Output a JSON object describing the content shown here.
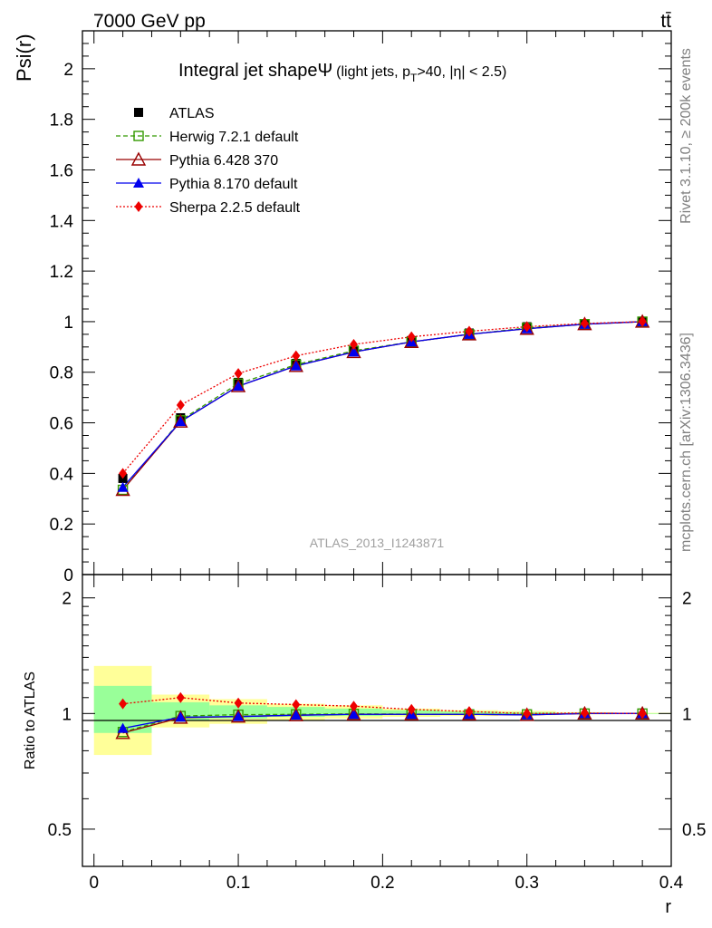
{
  "header": {
    "energy": "7000 GeV pp",
    "process": "tt̄",
    "side_rivet": "Rivet 3.1.10, ≥ 200k events",
    "side_mcplots": "mcplots.cern.ch [arXiv:1306.3436]",
    "watermark": "ATLAS_2013_I1243871"
  },
  "chart_data": [
    {
      "type": "line",
      "id": "main",
      "title": "Integral jet shape",
      "title_symbol": "Ψ",
      "title_sub": "(light jets, p",
      "title_sub_T": "T",
      "title_sub_rest": ">40, |η| < 2.5)",
      "ylabel": "Psi(r)",
      "xlim": [
        -0.008,
        0.4
      ],
      "ylim": [
        0,
        2.15
      ],
      "yticks": [
        0,
        0.2,
        0.4,
        0.6,
        0.8,
        1,
        1.2,
        1.4,
        1.6,
        1.8,
        2
      ],
      "ytick_labels": [
        "0",
        "0.2",
        "0.4",
        "0.6",
        "0.8",
        "1",
        "1.2",
        "1.4",
        "1.6",
        "1.8",
        "2"
      ],
      "x": [
        0.02,
        0.06,
        0.1,
        0.14,
        0.18,
        0.22,
        0.26,
        0.3,
        0.34,
        0.38
      ],
      "series": [
        {
          "name": "ATLAS",
          "color": "#000000",
          "marker": "square",
          "line": "none",
          "values": [
            0.38,
            0.62,
            0.76,
            0.835,
            0.885,
            0.925,
            0.955,
            0.98,
            0.99,
            1.0
          ]
        },
        {
          "name": "Herwig 7.2.1 default",
          "color": "#339900",
          "marker": "open-square",
          "line": "dashed",
          "values": [
            0.335,
            0.61,
            0.755,
            0.83,
            0.885,
            0.92,
            0.95,
            0.975,
            0.99,
            1.0
          ]
        },
        {
          "name": "Pythia 6.428 370",
          "color": "#990000",
          "marker": "open-triangle",
          "line": "solid",
          "values": [
            0.335,
            0.605,
            0.745,
            0.825,
            0.88,
            0.92,
            0.95,
            0.972,
            0.99,
            1.0
          ]
        },
        {
          "name": "Pythia 8.170 default",
          "color": "#0000ee",
          "marker": "triangle",
          "line": "solid",
          "values": [
            0.345,
            0.605,
            0.745,
            0.825,
            0.88,
            0.92,
            0.95,
            0.972,
            0.99,
            1.0
          ]
        },
        {
          "name": "Sherpa 2.2.5 default",
          "color": "#ee0000",
          "marker": "diamond",
          "line": "dotted",
          "values": [
            0.4,
            0.67,
            0.795,
            0.865,
            0.91,
            0.94,
            0.962,
            0.98,
            0.993,
            1.0
          ]
        }
      ]
    },
    {
      "type": "line",
      "id": "ratio",
      "ylabel": "Ratio to ATLAS",
      "xlabel": "r",
      "xlim": [
        -0.008,
        0.4
      ],
      "ylim": [
        0.4,
        2.3
      ],
      "log_y": true,
      "yticks": [
        0.5,
        1,
        2
      ],
      "ytick_labels": [
        "0.5",
        "1",
        "2"
      ],
      "xticks": [
        0,
        0.1,
        0.2,
        0.3,
        0.4
      ],
      "xtick_labels": [
        "0",
        "0.1",
        "0.2",
        "0.3",
        "0.4"
      ],
      "bands": {
        "edges": [
          0.0,
          0.04,
          0.08,
          0.12,
          0.16,
          0.2,
          0.24,
          0.28,
          0.32,
          0.36,
          0.4
        ],
        "yellow": [
          [
            0.78,
            1.33
          ],
          [
            0.92,
            1.12
          ],
          [
            0.94,
            1.09
          ],
          [
            0.96,
            1.06
          ],
          [
            0.97,
            1.05
          ],
          [
            0.98,
            1.03
          ],
          [
            0.985,
            1.02
          ],
          [
            0.99,
            1.015
          ],
          [
            0.995,
            1.008
          ],
          [
            0.997,
            1.004
          ]
        ],
        "green": [
          [
            0.89,
            1.18
          ],
          [
            0.96,
            1.07
          ],
          [
            0.97,
            1.05
          ],
          [
            0.98,
            1.04
          ],
          [
            0.985,
            1.03
          ],
          [
            0.99,
            1.02
          ],
          [
            0.992,
            1.012
          ],
          [
            0.995,
            1.008
          ],
          [
            0.997,
            1.004
          ],
          [
            0.998,
            1.002
          ]
        ]
      },
      "x": [
        0.02,
        0.06,
        0.1,
        0.14,
        0.18,
        0.22,
        0.26,
        0.3,
        0.34,
        0.38
      ],
      "series": [
        {
          "name": "Herwig 7.2.1 default",
          "color": "#339900",
          "marker": "open-square",
          "line": "dashed",
          "values": [
            0.895,
            0.985,
            0.993,
            0.995,
            0.998,
            0.996,
            0.995,
            0.995,
            1.0,
            1.0
          ]
        },
        {
          "name": "Pythia 6.428 370",
          "color": "#990000",
          "marker": "open-triangle",
          "line": "solid",
          "values": [
            0.89,
            0.975,
            0.982,
            0.99,
            0.995,
            0.995,
            0.995,
            0.992,
            1.0,
            1.0
          ]
        },
        {
          "name": "Pythia 8.170 default",
          "color": "#0000ee",
          "marker": "triangle",
          "line": "solid",
          "values": [
            0.915,
            0.978,
            0.982,
            0.99,
            0.995,
            0.995,
            0.995,
            0.992,
            1.0,
            1.0
          ]
        },
        {
          "name": "Sherpa 2.2.5 default",
          "color": "#ee0000",
          "marker": "diamond",
          "line": "dotted",
          "values": [
            1.06,
            1.1,
            1.065,
            1.055,
            1.045,
            1.025,
            1.012,
            1.0,
            1.003,
            1.0
          ]
        }
      ]
    }
  ]
}
